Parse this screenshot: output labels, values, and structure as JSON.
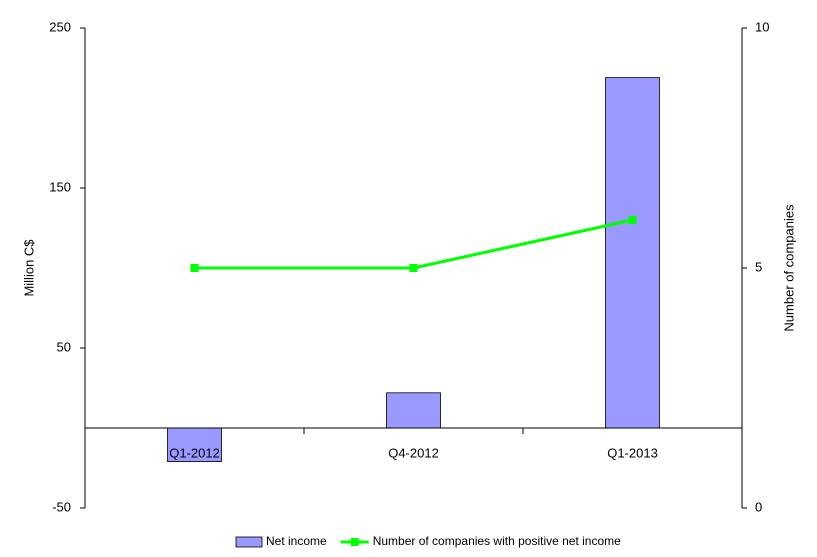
{
  "chart_data": {
    "type": "bar",
    "categories": [
      "Q1-2012",
      "Q4-2012",
      "Q1-2013"
    ],
    "series": [
      {
        "name": "Net income",
        "type": "bar",
        "color": "#9999ff",
        "values": [
          -21,
          22,
          219
        ]
      },
      {
        "name": "Number of companies with positive net income",
        "type": "line",
        "axis": "y2",
        "color": "#00ff00",
        "values": [
          5,
          5,
          6
        ]
      }
    ],
    "ylabel": "Million C$",
    "y2label": "Number of companies",
    "ylim": [
      -50,
      250
    ],
    "yticks": [
      -50,
      50,
      150,
      250
    ],
    "y2lim": [
      0,
      10
    ],
    "y2ticks": [
      0,
      5,
      10
    ],
    "legend": "bottom"
  }
}
